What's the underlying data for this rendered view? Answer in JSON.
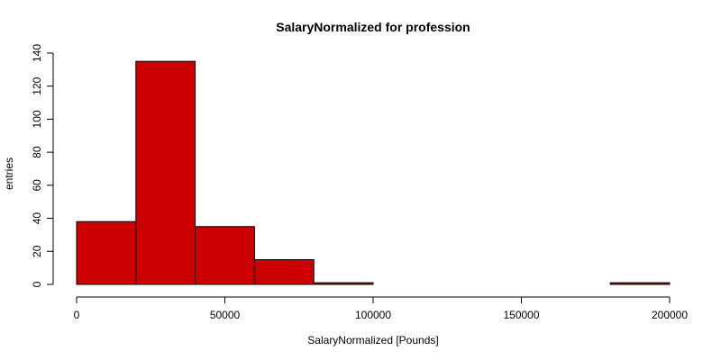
{
  "chart_data": {
    "type": "bar",
    "title": "SalaryNormalized for profession",
    "xlabel": "SalaryNormalized [Pounds]",
    "ylabel": "entries",
    "bin_width": 20000,
    "bins": [
      {
        "start": 0,
        "end": 20000,
        "count": 38
      },
      {
        "start": 20000,
        "end": 40000,
        "count": 135
      },
      {
        "start": 40000,
        "end": 60000,
        "count": 35
      },
      {
        "start": 60000,
        "end": 80000,
        "count": 15
      },
      {
        "start": 80000,
        "end": 100000,
        "count": 1
      },
      {
        "start": 100000,
        "end": 120000,
        "count": 0
      },
      {
        "start": 120000,
        "end": 140000,
        "count": 0
      },
      {
        "start": 140000,
        "end": 160000,
        "count": 0
      },
      {
        "start": 160000,
        "end": 180000,
        "count": 0
      },
      {
        "start": 180000,
        "end": 200000,
        "count": 1
      }
    ],
    "xlim": [
      0,
      200000
    ],
    "ylim": [
      0,
      140
    ],
    "x_ticks": [
      {
        "value": 0,
        "label": "0"
      },
      {
        "value": 50000,
        "label": "50000"
      },
      {
        "value": 100000,
        "label": "100000"
      },
      {
        "value": 150000,
        "label": "150000"
      },
      {
        "value": 200000,
        "label": "200000"
      }
    ],
    "y_ticks": [
      {
        "value": 0,
        "label": "0"
      },
      {
        "value": 20,
        "label": "20"
      },
      {
        "value": 40,
        "label": "40"
      },
      {
        "value": 60,
        "label": "60"
      },
      {
        "value": 80,
        "label": "80"
      },
      {
        "value": 100,
        "label": "100"
      },
      {
        "value": 120,
        "label": "120"
      },
      {
        "value": 140,
        "label": "140"
      }
    ],
    "bar_color": "#cc0000",
    "bar_edge_color": "#000000",
    "grid": false,
    "legend": "none"
  }
}
